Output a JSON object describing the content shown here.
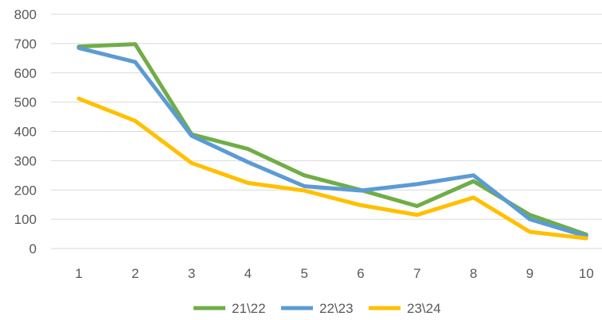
{
  "chart_data": {
    "type": "line",
    "title": "",
    "xlabel": "",
    "ylabel": "",
    "x": [
      1,
      2,
      3,
      4,
      5,
      6,
      7,
      8,
      9,
      10
    ],
    "ylim": [
      0,
      800
    ],
    "yticks": [
      0,
      100,
      200,
      300,
      400,
      500,
      600,
      700,
      800
    ],
    "grid": "horizontal",
    "legend": "bottom",
    "series": [
      {
        "name": "21\\22",
        "color": "#70ad47",
        "values": [
          690,
          698,
          390,
          340,
          250,
          200,
          145,
          230,
          115,
          48
        ]
      },
      {
        "name": "22\\23",
        "color": "#5b9bd5",
        "values": [
          685,
          637,
          385,
          295,
          213,
          198,
          220,
          250,
          100,
          42
        ]
      },
      {
        "name": "23\\24",
        "color": "#ffc000",
        "values": [
          512,
          436,
          292,
          224,
          198,
          148,
          115,
          174,
          57,
          35
        ]
      }
    ]
  }
}
